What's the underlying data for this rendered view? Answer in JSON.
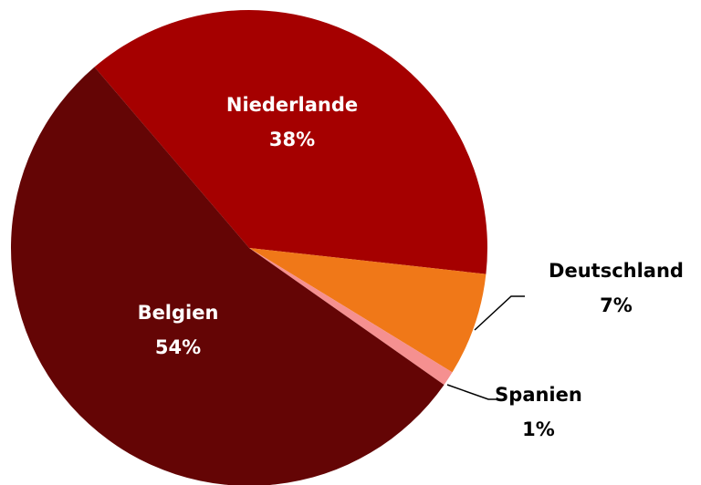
{
  "chart_data": {
    "type": "pie",
    "categories": [
      "Niederlande",
      "Deutschland",
      "Spanien",
      "Belgien"
    ],
    "values": [
      38,
      7,
      1,
      54
    ],
    "value_labels": [
      "38%",
      "7%",
      "1%",
      "54%"
    ],
    "colors": [
      "#a50000",
      "#f07818",
      "#f59090",
      "#640505"
    ]
  }
}
